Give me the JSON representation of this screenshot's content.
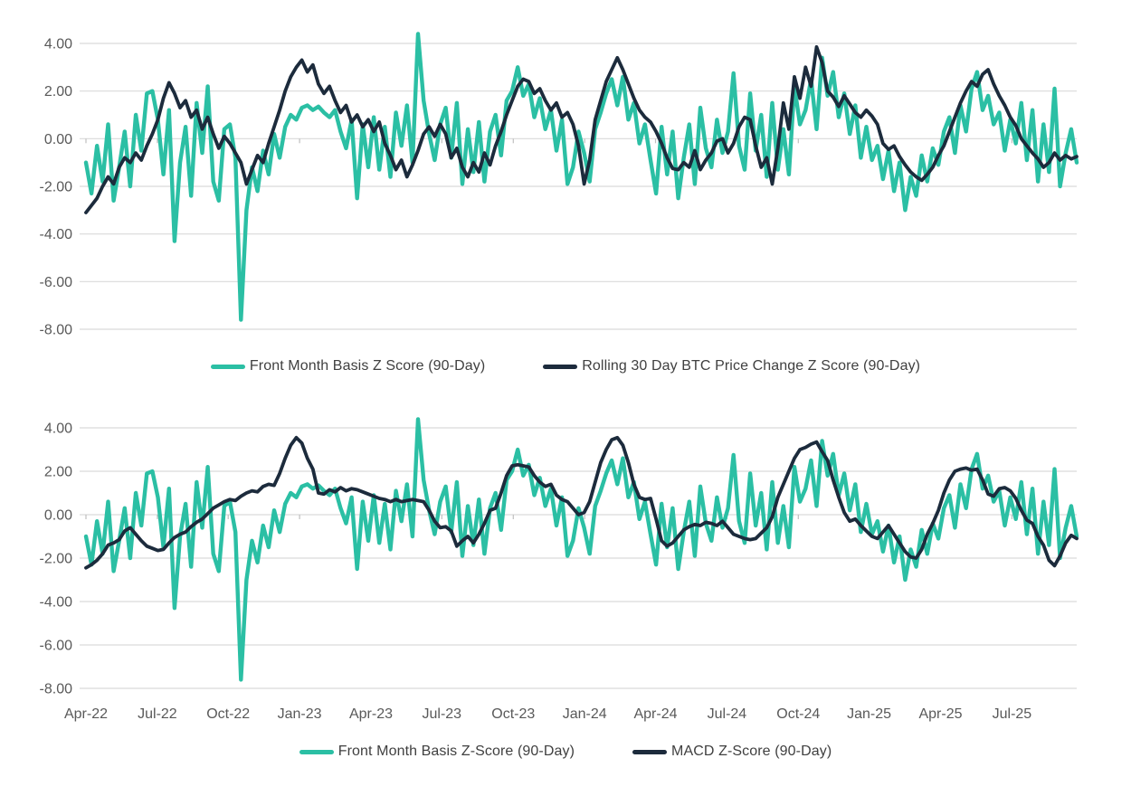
{
  "colors": {
    "teal": "#2BBFA4",
    "navy": "#1C2B3C",
    "gridline": "#D9D9D9",
    "axis_tick": "#BFBFBF",
    "axis_label_text": "#595959",
    "legend_text": "#404040",
    "background": "#FFFFFF"
  },
  "y_tick_labels": [
    "4.00",
    "2.00",
    "0.00",
    "-2.00",
    "-4.00",
    "-6.00",
    "-8.00"
  ],
  "x_tick_labels": [
    "Apr-22",
    "Jul-22",
    "Oct-22",
    "Jan-23",
    "Apr-23",
    "Jul-23",
    "Oct-23",
    "Jan-24",
    "Apr-24",
    "Jul-24",
    "Oct-24",
    "Jan-25",
    "Apr-25",
    "Jul-25"
  ],
  "x_tick_indices": [
    0,
    12.9,
    25.7,
    38.6,
    51.5,
    64.3,
    77.2,
    90.1,
    102.9,
    115.8,
    128.7,
    141.5,
    154.4,
    167.3
  ],
  "series_values": {
    "front_month_basis": [
      -1.0,
      -2.3,
      -0.3,
      -1.8,
      0.6,
      -2.6,
      -1.2,
      0.3,
      -2.0,
      1.0,
      -0.5,
      1.9,
      2.0,
      0.8,
      -1.5,
      1.2,
      -4.3,
      -1.0,
      0.5,
      -2.4,
      1.5,
      -0.6,
      2.2,
      -1.8,
      -2.6,
      0.4,
      0.6,
      -0.8,
      -7.6,
      -3.0,
      -1.2,
      -2.2,
      -0.5,
      -1.5,
      0.2,
      -0.8,
      0.5,
      1.0,
      0.8,
      1.3,
      1.4,
      1.2,
      1.35,
      1.1,
      0.9,
      1.2,
      0.3,
      -0.4,
      0.8,
      -2.5,
      0.6,
      -1.2,
      0.9,
      -1.3,
      0.5,
      -1.6,
      1.1,
      -0.3,
      1.4,
      -1.0,
      4.4,
      1.6,
      0.2,
      -0.9,
      0.6,
      1.3,
      -0.8,
      1.5,
      -1.9,
      0.4,
      -1.4,
      0.7,
      -1.8,
      0.3,
      1.0,
      -0.7,
      1.6,
      2.0,
      3.0,
      1.8,
      2.3,
      0.9,
      1.7,
      0.4,
      1.2,
      -0.5,
      0.8,
      -1.9,
      -1.2,
      0.3,
      -0.6,
      -1.8,
      0.4,
      1.1,
      1.9,
      2.5,
      1.4,
      2.6,
      0.8,
      1.5,
      -0.2,
      0.6,
      -0.9,
      -2.3,
      0.5,
      -1.5,
      0.3,
      -2.5,
      -0.8,
      0.6,
      -1.9,
      1.3,
      -0.4,
      -1.2,
      0.8,
      -0.6,
      0.3,
      2.75,
      -0.3,
      -1.3,
      1.9,
      -0.5,
      1.0,
      -1.6,
      1.5,
      -1.3,
      0.4,
      -1.5,
      2.2,
      0.6,
      1.2,
      2.5,
      0.4,
      3.4,
      1.8,
      2.8,
      0.9,
      1.9,
      0.2,
      1.4,
      -0.8,
      0.5,
      -0.9,
      -0.3,
      -1.7,
      -0.5,
      -2.2,
      -1.0,
      -3.0,
      -1.6,
      -2.4,
      -0.7,
      -1.8,
      -0.4,
      -1.1,
      0.3,
      0.9,
      -0.6,
      1.4,
      0.3,
      2.1,
      2.8,
      1.2,
      1.8,
      0.6,
      1.1,
      -0.5,
      0.8,
      -0.2,
      1.5,
      -0.9,
      1.2,
      -1.8,
      0.6,
      -1.4,
      2.1,
      -2.0,
      -0.6,
      0.4,
      -1.0
    ],
    "rolling_btc_z": [
      -3.1,
      -2.8,
      -2.5,
      -2.0,
      -1.6,
      -1.9,
      -1.2,
      -0.8,
      -1.0,
      -0.6,
      -0.9,
      -0.3,
      0.2,
      0.8,
      1.7,
      2.35,
      1.9,
      1.3,
      1.6,
      0.9,
      1.2,
      0.4,
      0.9,
      0.2,
      -0.4,
      0.1,
      -0.2,
      -0.6,
      -1.0,
      -1.9,
      -1.3,
      -0.7,
      -1.0,
      -0.2,
      0.5,
      1.2,
      2.0,
      2.6,
      3.0,
      3.3,
      2.8,
      3.1,
      2.3,
      1.9,
      2.2,
      1.6,
      1.1,
      1.4,
      0.7,
      1.0,
      0.5,
      0.8,
      0.3,
      0.7,
      -0.2,
      -0.7,
      -1.3,
      -0.9,
      -1.6,
      -1.1,
      -0.5,
      0.2,
      0.5,
      0.1,
      0.6,
      0.2,
      -0.8,
      -0.4,
      -1.2,
      -1.6,
      -1.0,
      -1.4,
      -0.6,
      -1.1,
      -0.3,
      0.3,
      1.0,
      1.6,
      2.2,
      2.5,
      2.4,
      1.9,
      2.1,
      1.6,
      1.2,
      1.5,
      0.9,
      1.1,
      0.6,
      -0.3,
      -1.9,
      -0.9,
      0.8,
      1.6,
      2.4,
      2.9,
      3.4,
      2.9,
      2.3,
      1.7,
      1.2,
      0.9,
      0.7,
      0.3,
      -0.2,
      -0.8,
      -1.25,
      -1.3,
      -1.0,
      -1.2,
      -0.5,
      -1.3,
      -0.9,
      -0.6,
      -0.1,
      0.0,
      -0.6,
      -0.2,
      0.5,
      0.9,
      0.8,
      -0.3,
      -1.2,
      -0.8,
      -1.9,
      -0.4,
      1.5,
      0.4,
      2.6,
      1.7,
      3.0,
      2.2,
      3.85,
      3.2,
      2.0,
      1.75,
      1.35,
      1.8,
      1.45,
      1.1,
      0.9,
      1.2,
      0.95,
      0.6,
      -0.2,
      -0.45,
      -0.3,
      -0.75,
      -1.1,
      -1.4,
      -1.6,
      -1.75,
      -1.5,
      -1.2,
      -0.7,
      -0.3,
      0.3,
      0.9,
      1.5,
      2.0,
      2.4,
      2.2,
      2.7,
      2.9,
      2.3,
      1.8,
      1.4,
      0.9,
      0.55,
      0.0,
      -0.3,
      -0.6,
      -0.85,
      -1.2,
      -1.0,
      -0.6,
      -0.9,
      -0.7,
      -0.85,
      -0.75
    ],
    "macd_z": [
      -2.45,
      -2.3,
      -2.1,
      -1.8,
      -1.4,
      -1.3,
      -1.15,
      -0.75,
      -0.6,
      -0.9,
      -1.2,
      -1.45,
      -1.55,
      -1.65,
      -1.6,
      -1.3,
      -1.05,
      -0.9,
      -0.8,
      -0.55,
      -0.35,
      -0.2,
      0.05,
      0.3,
      0.45,
      0.6,
      0.7,
      0.65,
      0.85,
      1.0,
      1.1,
      1.05,
      1.3,
      1.4,
      1.35,
      1.9,
      2.6,
      3.2,
      3.55,
      3.3,
      2.6,
      2.1,
      1.0,
      0.95,
      1.15,
      1.05,
      1.25,
      1.1,
      1.2,
      1.15,
      1.05,
      0.95,
      0.85,
      0.75,
      0.7,
      0.6,
      0.7,
      0.6,
      0.65,
      0.7,
      0.65,
      0.6,
      0.2,
      -0.3,
      -0.6,
      -0.55,
      -0.75,
      -1.45,
      -1.2,
      -1.0,
      -1.3,
      -0.9,
      -0.4,
      0.2,
      0.3,
      1.0,
      1.8,
      2.25,
      2.3,
      2.25,
      2.2,
      1.8,
      1.5,
      1.3,
      1.4,
      0.9,
      0.7,
      0.6,
      0.3,
      0.0,
      0.1,
      0.6,
      1.5,
      2.4,
      3.0,
      3.45,
      3.55,
      3.2,
      2.4,
      1.4,
      0.8,
      0.7,
      0.75,
      -0.2,
      -1.2,
      -1.45,
      -1.3,
      -1.0,
      -0.7,
      -0.55,
      -0.45,
      -0.5,
      -0.35,
      -0.4,
      -0.5,
      -0.3,
      -0.6,
      -0.9,
      -1.0,
      -1.1,
      -1.15,
      -1.1,
      -0.85,
      -0.6,
      -0.1,
      0.8,
      1.4,
      2.0,
      2.6,
      3.0,
      3.1,
      3.25,
      3.35,
      2.9,
      2.5,
      1.6,
      0.8,
      0.1,
      -0.3,
      -0.2,
      -0.5,
      -0.75,
      -1.0,
      -1.1,
      -0.8,
      -0.5,
      -0.9,
      -1.3,
      -1.7,
      -1.95,
      -2.0,
      -1.6,
      -0.9,
      -0.4,
      0.2,
      1.0,
      1.6,
      2.0,
      2.1,
      2.15,
      2.05,
      2.1,
      1.6,
      0.95,
      0.85,
      1.2,
      1.25,
      1.1,
      0.75,
      0.2,
      -0.25,
      -0.4,
      -1.0,
      -1.4,
      -2.1,
      -2.35,
      -1.9,
      -1.3,
      -0.95,
      -1.1
    ]
  },
  "chart_data": [
    {
      "type": "line",
      "position": "top",
      "ylim": [
        -8,
        4
      ],
      "y_ticks": [
        4,
        2,
        0,
        -2,
        -4,
        -6,
        -8
      ],
      "grid": true,
      "legend_position": "below",
      "x_range": "Apr-2022 to Sep-2025 (weekly points, quarterly ticks, x labels hidden on this panel)",
      "series": [
        {
          "name": "Front Month Basis Z Score (90-Day)",
          "color": "#2BBFA4",
          "values_key": "front_month_basis"
        },
        {
          "name": "Rolling 30 Day BTC Price Change Z Score (90-Day)",
          "color": "#1C2B3C",
          "values_key": "rolling_btc_z"
        }
      ]
    },
    {
      "type": "line",
      "position": "bottom",
      "ylim": [
        -8,
        4
      ],
      "y_ticks": [
        4,
        2,
        0,
        -2,
        -4,
        -6,
        -8
      ],
      "grid": true,
      "legend_position": "below",
      "x_range": "Apr-2022 to Sep-2025 (weekly points, quarterly tick labels shown)",
      "series": [
        {
          "name": "Front Month Basis Z-Score (90-Day)",
          "color": "#2BBFA4",
          "values_key": "front_month_basis"
        },
        {
          "name": "MACD Z-Score (90-Day)",
          "color": "#1C2B3C",
          "values_key": "macd_z"
        }
      ]
    }
  ]
}
